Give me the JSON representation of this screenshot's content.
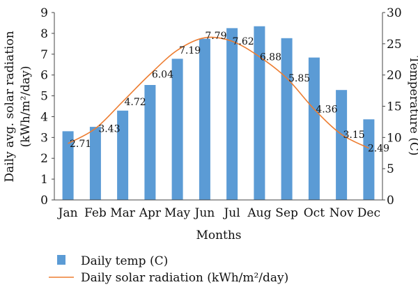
{
  "chart_data": {
    "type": "bar",
    "categories": [
      "Jan",
      "Feb",
      "Mar",
      "Apr",
      "May",
      "Jun",
      "Jul",
      "Aug",
      "Sep",
      "Oct",
      "Nov",
      "Dec"
    ],
    "series": [
      {
        "name": "Daily temp (C)",
        "type": "bar",
        "axis": "right",
        "values": [
          11.0,
          11.7,
          14.3,
          18.4,
          22.6,
          25.8,
          27.5,
          27.8,
          25.9,
          22.8,
          17.6,
          12.9
        ],
        "color": "#5b9bd5"
      },
      {
        "name": "Daily solar radiation (kWh/m²/day)",
        "type": "line",
        "axis": "left",
        "values": [
          2.71,
          3.43,
          4.72,
          6.04,
          7.19,
          7.79,
          7.62,
          6.88,
          5.85,
          4.36,
          3.15,
          2.49
        ],
        "labels": [
          "2.71",
          "3.43",
          "4.72",
          "6.04",
          "7.19",
          "7.79",
          "7.62",
          "6.88",
          "5.85",
          "4.36",
          "3.15",
          "2.49"
        ],
        "color": "#ed7d31"
      }
    ],
    "xlabel": "Months",
    "ylabel_left": "Daily avg. solar radiation (kWh/m²/day)",
    "ylabel_left_line1": "Daily avg. solar radiation",
    "ylabel_left_line2": "(kWh/m²/day)",
    "ylabel_right": "Temperature (C)",
    "ylim_left": [
      0,
      9
    ],
    "ylim_right": [
      0,
      30
    ],
    "yticks_left": [
      "0",
      "1",
      "2",
      "3",
      "4",
      "5",
      "6",
      "7",
      "8",
      "9"
    ],
    "yticks_right": [
      "0",
      "5",
      "10",
      "15",
      "20",
      "25",
      "30"
    ],
    "grid": false,
    "legend_position": "bottom"
  }
}
